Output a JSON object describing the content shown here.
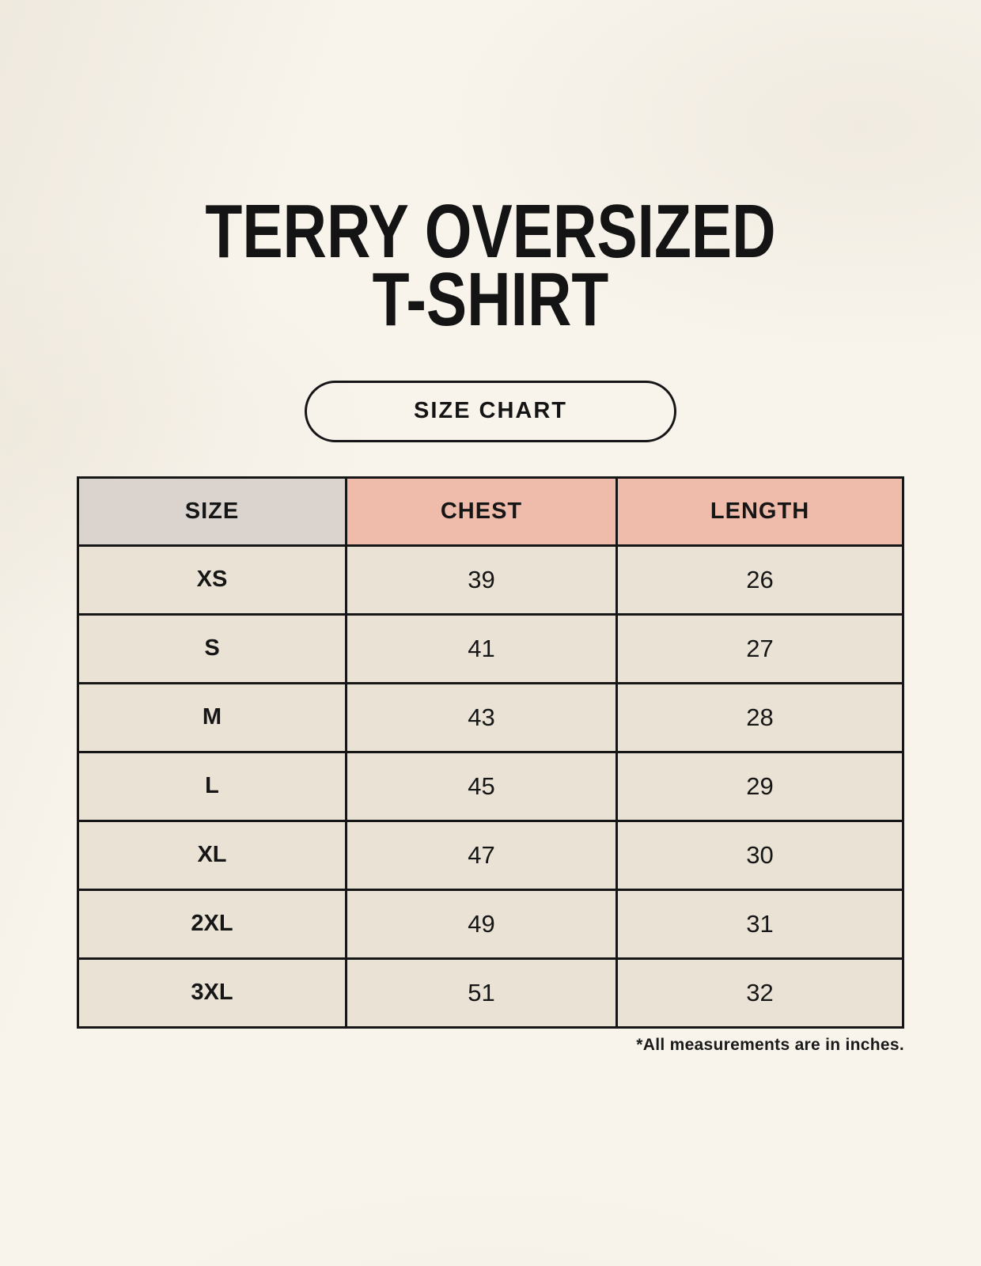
{
  "page": {
    "title_line1": "TERRY OVERSIZED",
    "title_line2": "T-SHIRT",
    "badge_label": "SIZE CHART",
    "footnote": "*All measurements are in inches."
  },
  "colors": {
    "page_background": "#f8f4ec",
    "accent_salmon": "#efbcab",
    "size_column_gray": "#dad3ce",
    "cell_cream": "#e9e2d5",
    "border_black": "#161616"
  },
  "chart_data": {
    "type": "table",
    "title": "TERRY OVERSIZED T-SHIRT",
    "columns": [
      "SIZE",
      "CHEST",
      "LENGTH"
    ],
    "units": "inches",
    "note": "*All measurements are in inches.",
    "rows": [
      {
        "size": "XS",
        "chest": 39,
        "length": 26
      },
      {
        "size": "S",
        "chest": 41,
        "length": 27
      },
      {
        "size": "M",
        "chest": 43,
        "length": 28
      },
      {
        "size": "L",
        "chest": 45,
        "length": 29
      },
      {
        "size": "XL",
        "chest": 47,
        "length": 30
      },
      {
        "size": "2XL",
        "chest": 49,
        "length": 31
      },
      {
        "size": "3XL",
        "chest": 51,
        "length": 32
      }
    ]
  }
}
